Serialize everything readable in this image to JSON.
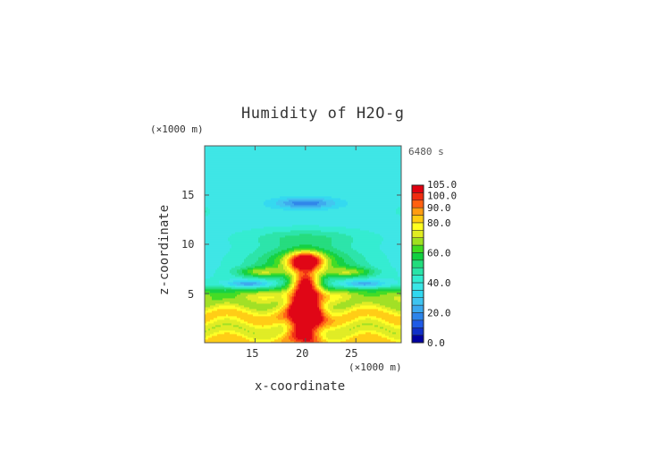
{
  "chart_data": {
    "type": "heatmap",
    "title": "Humidity of H2O-g",
    "time_label": "6480 s",
    "xlabel": "x-coordinate",
    "ylabel": "z-coordinate",
    "x_unit": "(×1000 m)",
    "y_unit": "(×1000 m)",
    "xlim": [
      10.0,
      29.5
    ],
    "ylim": [
      0.0,
      20.0
    ],
    "x_ticks": [
      "15",
      "20",
      "25"
    ],
    "y_ticks": [
      "5",
      "10",
      "15"
    ],
    "colorbar": {
      "range": [
        0,
        105
      ],
      "levels": [
        {
          "value": 0,
          "color": "#0000a0"
        },
        {
          "value": 5,
          "color": "#1030c8"
        },
        {
          "value": 10,
          "color": "#1e5ae6"
        },
        {
          "value": 15,
          "color": "#2c84ea"
        },
        {
          "value": 20,
          "color": "#3aa8ee"
        },
        {
          "value": 25,
          "color": "#3ec4f0"
        },
        {
          "value": 30,
          "color": "#30d8f0"
        },
        {
          "value": 35,
          "color": "#3ae6e6"
        },
        {
          "value": 40,
          "color": "#30ecd0"
        },
        {
          "value": 45,
          "color": "#28e4a8"
        },
        {
          "value": 50,
          "color": "#20dc7c"
        },
        {
          "value": 55,
          "color": "#10d040"
        },
        {
          "value": 60,
          "color": "#40dc20"
        },
        {
          "value": 65,
          "color": "#a0e020"
        },
        {
          "value": 70,
          "color": "#e0ec20"
        },
        {
          "value": 75,
          "color": "#ffff20"
        },
        {
          "value": 80,
          "color": "#ffcc10"
        },
        {
          "value": 85,
          "color": "#ff9c10"
        },
        {
          "value": 90,
          "color": "#ff6010"
        },
        {
          "value": 95,
          "color": "#f02c10"
        },
        {
          "value": 100,
          "color": "#e00010"
        },
        {
          "value": 105,
          "color": "#ffffff"
        }
      ],
      "tick_labels": [
        "0.0",
        "20.0",
        "40.0",
        "60.0",
        "80.0",
        "90.0",
        "100.0",
        "105.0"
      ],
      "tick_values": [
        0,
        20,
        40,
        60,
        80,
        90,
        100,
        105
      ]
    },
    "field_description_values": {
      "background": 38,
      "dry_pocket_upper": {
        "x": 20.0,
        "z": 14.2,
        "value": 20
      },
      "moist_column_peak": {
        "x": 20.0,
        "z": 3.0,
        "value": 98
      },
      "moist_cap": {
        "x": 20.0,
        "z": 8.3,
        "value": 95
      },
      "dry_lobes": [
        {
          "x": 14.3,
          "z": 6.0,
          "value": 20
        },
        {
          "x": 25.8,
          "z": 6.0,
          "value": 20
        }
      ],
      "surface_layer": {
        "z_top": 5.0,
        "value": 80
      }
    }
  }
}
